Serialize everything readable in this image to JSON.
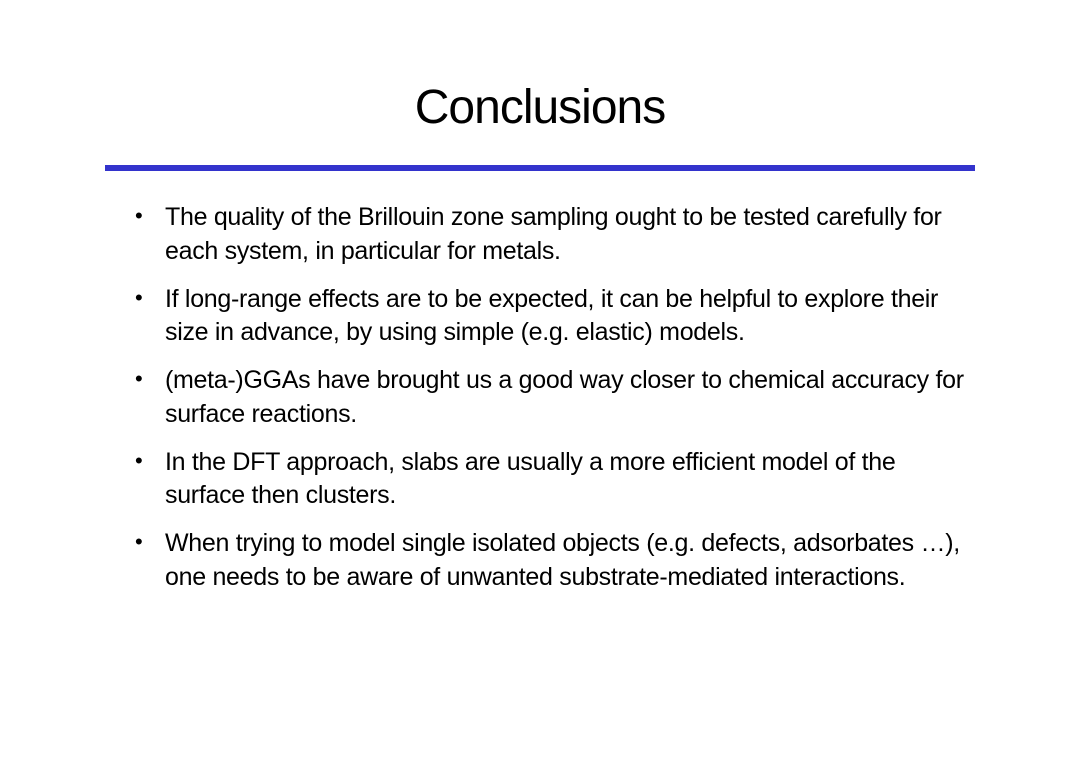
{
  "slide": {
    "title": "Conclusions",
    "divider_color": "#3333cc",
    "background_color": "#ffffff",
    "text_color": "#000000",
    "title_fontsize": 48,
    "body_fontsize": 25,
    "bullets": [
      "The quality of the Brillouin zone sampling ought to be tested carefully for each system, in particular for metals.",
      "If long-range effects are to be expected, it can be helpful to explore their size in advance, by using simple (e.g. elastic) models.",
      "(meta-)GGAs have brought us a good way closer to chemical accuracy for surface reactions.",
      "In the DFT approach, slabs are usually a more efficient model of the surface then clusters.",
      "When trying to model single isolated objects (e.g. defects, adsorbates …), one needs to be aware of unwanted substrate-mediated interactions."
    ]
  }
}
